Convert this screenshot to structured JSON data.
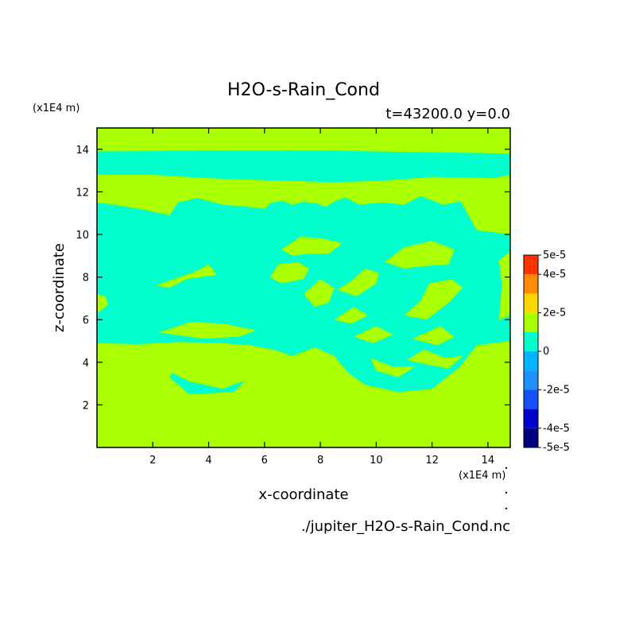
{
  "chart_data": {
    "type": "heatmap",
    "title": "H2O-s-Rain_Cond",
    "subtitle": "t=43200.0 y=0.0",
    "xlabel": "x-coordinate",
    "ylabel": "z-coordinate",
    "x_unit": "(x1E4 m)",
    "y_unit": "(x1E4 m)",
    "source_file": "./jupiter_H2O-s-Rain_Cond.nc",
    "xlim": [
      0,
      14.8
    ],
    "ylim": [
      0,
      15
    ],
    "x_ticks": [
      2,
      4,
      6,
      8,
      10,
      12,
      14
    ],
    "y_ticks": [
      2,
      4,
      6,
      8,
      10,
      12,
      14
    ],
    "colorbar": {
      "range": [
        -5e-05,
        5e-05
      ],
      "levels": [
        -5e-05,
        -4e-05,
        -3e-05,
        -2e-05,
        -1e-05,
        0,
        1e-05,
        2e-05,
        3e-05,
        4e-05,
        5e-05
      ],
      "colors": [
        "#000080",
        "#0000cd",
        "#1450ff",
        "#1e90ff",
        "#00b4ff",
        "#00ffcc",
        "#aaff00",
        "#ffd700",
        "#ff8c00",
        "#ff3300"
      ],
      "tick_labels": [
        "5e-5",
        "4e-5",
        "2e-5",
        "0",
        "-2e-5",
        "-4e-5",
        "-5e-5"
      ],
      "tick_values": [
        5e-05,
        4e-05,
        2e-05,
        0,
        -2e-05,
        -4e-05,
        -5e-05
      ]
    },
    "fields": [
      {
        "name": "positive",
        "color": "#aaff00",
        "value_range": [
          0,
          1e-05
        ]
      },
      {
        "name": "negative",
        "color": "#00ffcc",
        "value_range": [
          -1e-05,
          0
        ]
      }
    ],
    "regions": {
      "negative": [
        [
          [
            0.0,
            4.9
          ],
          [
            1.5,
            4.85
          ],
          [
            3.0,
            4.95
          ],
          [
            4.5,
            4.9
          ],
          [
            5.5,
            4.8
          ],
          [
            6.3,
            4.6
          ],
          [
            7.0,
            4.3
          ],
          [
            7.8,
            4.7
          ],
          [
            8.5,
            4.3
          ],
          [
            9.0,
            3.5
          ],
          [
            9.6,
            2.95
          ],
          [
            10.8,
            2.6
          ],
          [
            12.0,
            2.75
          ],
          [
            13.0,
            3.8
          ],
          [
            13.6,
            4.8
          ],
          [
            14.8,
            5.0
          ],
          [
            14.8,
            13.8
          ],
          [
            10.0,
            13.9
          ],
          [
            7.0,
            13.95
          ],
          [
            0.0,
            13.9
          ],
          [
            0.0,
            12.8
          ],
          [
            2.0,
            12.8
          ],
          [
            3.8,
            12.65
          ],
          [
            6.0,
            12.55
          ],
          [
            8.3,
            12.45
          ],
          [
            10.0,
            12.5
          ],
          [
            12.0,
            12.7
          ],
          [
            14.2,
            12.65
          ],
          [
            14.8,
            12.8
          ],
          [
            14.8,
            10.0
          ],
          [
            13.6,
            10.2
          ],
          [
            13.0,
            11.6
          ],
          [
            11.8,
            12.2
          ],
          [
            9.4,
            12.0
          ],
          [
            8.2,
            11.4
          ],
          [
            7.0,
            11.6
          ],
          [
            5.5,
            11.4
          ],
          [
            4.0,
            11.7
          ],
          [
            2.8,
            12.0
          ],
          [
            1.6,
            11.5
          ],
          [
            0.6,
            11.8
          ],
          [
            0.0,
            11.5
          ]
        ],
        [
          [
            2.7,
            3.5
          ],
          [
            3.3,
            3.1
          ],
          [
            4.5,
            2.75
          ],
          [
            5.3,
            3.15
          ],
          [
            4.9,
            2.6
          ],
          [
            3.3,
            2.5
          ],
          [
            2.6,
            3.3
          ]
        ]
      ],
      "positive": [
        [
          [
            0.0,
            11.5
          ],
          [
            0.6,
            11.4
          ],
          [
            1.5,
            11.2
          ],
          [
            2.6,
            10.9
          ],
          [
            2.9,
            11.5
          ],
          [
            3.6,
            11.7
          ],
          [
            4.5,
            11.4
          ],
          [
            5.4,
            11.3
          ],
          [
            6.0,
            11.2
          ],
          [
            6.4,
            11.7
          ],
          [
            7.0,
            11.4
          ],
          [
            7.6,
            11.6
          ],
          [
            8.2,
            11.3
          ],
          [
            8.8,
            11.8
          ],
          [
            9.4,
            11.4
          ],
          [
            10.2,
            11.5
          ],
          [
            11.0,
            11.4
          ],
          [
            11.6,
            11.8
          ],
          [
            12.4,
            11.4
          ],
          [
            13.2,
            11.6
          ],
          [
            13.6,
            11.0
          ],
          [
            13.9,
            10.2
          ],
          [
            14.8,
            10.0
          ],
          [
            14.8,
            12.8
          ],
          [
            14.2,
            12.65
          ],
          [
            13.2,
            12.55
          ],
          [
            12.0,
            12.7
          ],
          [
            10.0,
            12.5
          ],
          [
            8.3,
            12.45
          ],
          [
            6.0,
            12.55
          ],
          [
            3.8,
            12.65
          ],
          [
            2.0,
            12.8
          ],
          [
            0.0,
            12.8
          ]
        ],
        [
          [
            6.5,
            8.6
          ],
          [
            7.2,
            8.7
          ],
          [
            7.6,
            8.4
          ],
          [
            7.4,
            7.9
          ],
          [
            6.6,
            7.7
          ],
          [
            6.2,
            8.0
          ]
        ],
        [
          [
            2.1,
            7.6
          ],
          [
            3.6,
            8.3
          ],
          [
            4.0,
            8.6
          ],
          [
            4.3,
            8.1
          ],
          [
            3.2,
            7.9
          ],
          [
            2.6,
            7.5
          ]
        ],
        [
          [
            6.6,
            9.3
          ],
          [
            7.3,
            9.9
          ],
          [
            8.1,
            9.8
          ],
          [
            8.8,
            9.6
          ],
          [
            8.3,
            9.1
          ],
          [
            7.6,
            9.1
          ],
          [
            7.0,
            9.0
          ]
        ],
        [
          [
            10.3,
            8.7
          ],
          [
            11.0,
            9.4
          ],
          [
            12.0,
            9.7
          ],
          [
            12.8,
            9.3
          ],
          [
            12.6,
            8.6
          ],
          [
            11.6,
            8.5
          ],
          [
            11.0,
            8.4
          ]
        ],
        [
          [
            8.6,
            7.4
          ],
          [
            9.2,
            7.9
          ],
          [
            9.6,
            8.4
          ],
          [
            10.1,
            8.2
          ],
          [
            10.0,
            7.7
          ],
          [
            9.3,
            7.1
          ]
        ],
        [
          [
            11.0,
            6.2
          ],
          [
            11.6,
            6.9
          ],
          [
            11.9,
            7.7
          ],
          [
            12.7,
            7.9
          ],
          [
            13.1,
            7.5
          ],
          [
            12.6,
            6.8
          ],
          [
            11.8,
            6.0
          ]
        ],
        [
          [
            7.4,
            7.2
          ],
          [
            8.0,
            7.9
          ],
          [
            8.5,
            7.5
          ],
          [
            8.3,
            6.8
          ],
          [
            7.8,
            6.6
          ]
        ],
        [
          [
            8.5,
            6.0
          ],
          [
            9.2,
            6.6
          ],
          [
            9.7,
            6.2
          ],
          [
            9.1,
            5.8
          ]
        ],
        [
          [
            9.2,
            5.2
          ],
          [
            10.0,
            5.7
          ],
          [
            10.6,
            5.3
          ],
          [
            9.9,
            4.9
          ]
        ],
        [
          [
            11.3,
            5.1
          ],
          [
            12.3,
            5.7
          ],
          [
            12.8,
            5.2
          ],
          [
            12.2,
            4.8
          ]
        ],
        [
          [
            2.2,
            5.4
          ],
          [
            3.4,
            5.9
          ],
          [
            4.6,
            5.8
          ],
          [
            5.7,
            5.5
          ],
          [
            5.1,
            5.2
          ],
          [
            3.8,
            5.1
          ]
        ],
        [
          [
            0.0,
            6.3
          ],
          [
            0.4,
            6.7
          ],
          [
            0.3,
            7.1
          ],
          [
            0.0,
            7.2
          ]
        ],
        [
          [
            14.4,
            6.0
          ],
          [
            14.8,
            6.2
          ],
          [
            14.8,
            9.2
          ],
          [
            14.4,
            8.8
          ],
          [
            14.5,
            7.6
          ]
        ],
        [
          [
            11.7,
            4.6
          ],
          [
            12.5,
            4.2
          ],
          [
            13.1,
            4.3
          ],
          [
            12.6,
            3.7
          ],
          [
            11.8,
            3.9
          ],
          [
            11.1,
            4.1
          ]
        ],
        [
          [
            9.8,
            4.2
          ],
          [
            10.6,
            3.8
          ],
          [
            11.4,
            3.8
          ],
          [
            10.8,
            3.3
          ],
          [
            10.0,
            3.6
          ]
        ]
      ]
    }
  }
}
